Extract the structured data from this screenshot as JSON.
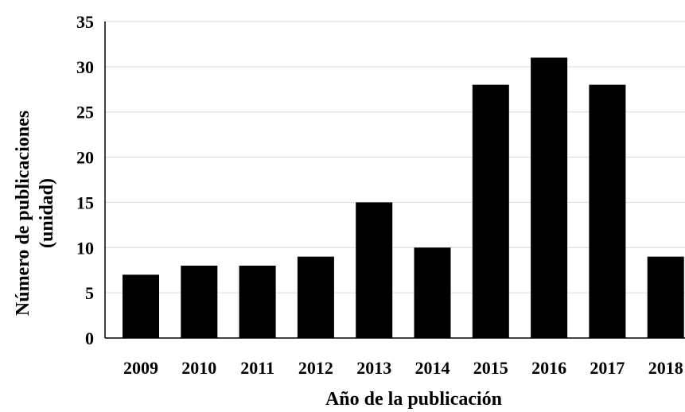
{
  "chart_data": {
    "type": "bar",
    "categories": [
      "2009",
      "2010",
      "2011",
      "2012",
      "2013",
      "2014",
      "2015",
      "2016",
      "2017",
      "2018"
    ],
    "values": [
      7,
      8,
      8,
      9,
      15,
      10,
      28,
      31,
      28,
      9
    ],
    "xlabel": "Año de la publicación",
    "ylabel_line1": "Número de publicaciones",
    "ylabel_line2": "(unidad)",
    "ylim": [
      0,
      35
    ],
    "yticks": [
      "0",
      "5",
      "10",
      "15",
      "20",
      "25",
      "30",
      "35"
    ],
    "grid": true,
    "legend": "none",
    "colors": {
      "bar": "#000000",
      "grid": "#d9d9d9",
      "axis": "#000000"
    }
  }
}
